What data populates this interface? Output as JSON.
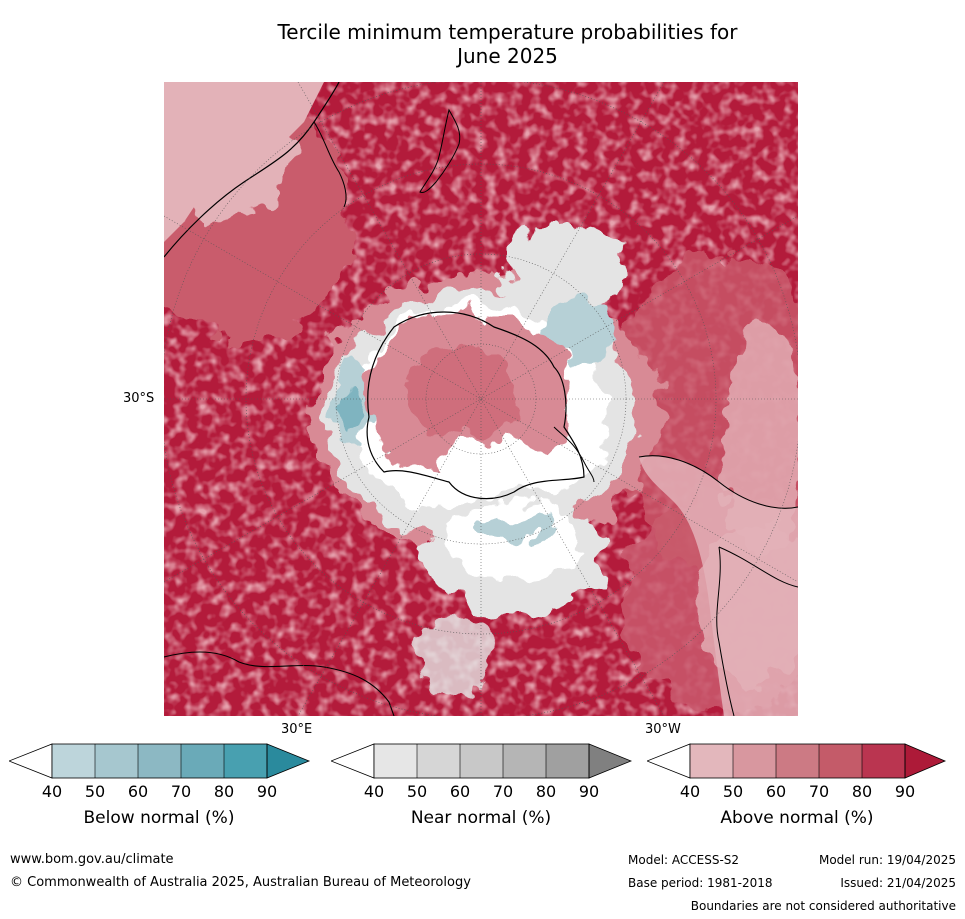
{
  "title_line1": "Tercile minimum temperature probabilities for",
  "title_line2": "June 2025",
  "map": {
    "lat_label": "30°S",
    "lon_label_e": "30°E",
    "lon_label_w": "30°W",
    "colors": {
      "above_90": "#b31b3b",
      "above_80": "#c13250",
      "above_70": "#c95b6c",
      "above_60": "#d88a95",
      "above_50": "#e3b2b8",
      "near": "#e4e4e4",
      "white": "#ffffff",
      "below_50": "#b6d0d6",
      "below_70": "#7fb4c0",
      "land_outline": "#000000"
    }
  },
  "colorbars": [
    {
      "label": "Below normal (%)",
      "ticks": [
        "40",
        "50",
        "60",
        "70",
        "80",
        "90"
      ],
      "colors": [
        "#ffffff",
        "#bdd5db",
        "#a6c7cf",
        "#8cb8c3",
        "#6aaab8",
        "#48a0b0",
        "#2a8a9d"
      ]
    },
    {
      "label": "Near normal (%)",
      "ticks": [
        "40",
        "50",
        "60",
        "70",
        "80",
        "90"
      ],
      "colors": [
        "#ffffff",
        "#e6e6e6",
        "#d6d6d6",
        "#c8c8c8",
        "#b5b5b5",
        "#a0a0a0",
        "#808080"
      ]
    },
    {
      "label": "Above normal (%)",
      "ticks": [
        "40",
        "50",
        "60",
        "70",
        "80",
        "90"
      ],
      "colors": [
        "#ffffff",
        "#e3b7bc",
        "#d8979f",
        "#cc7a84",
        "#c45b69",
        "#ba3550",
        "#ad1a38"
      ]
    }
  ],
  "footer": {
    "website": "www.bom.gov.au/climate",
    "copyright": "© Commonwealth of Australia 2025, Australian Bureau of Meteorology",
    "model": "Model: ACCESS-S2",
    "base_period": "Base period: 1981-2018",
    "model_run": "Model run: 19/04/2025",
    "issued": "Issued: 21/04/2025",
    "disclaimer": "Boundaries are not considered authoritative"
  }
}
